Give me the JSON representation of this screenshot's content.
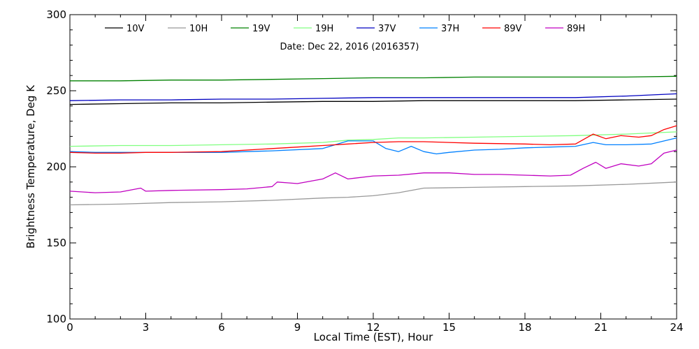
{
  "chart_data": {
    "type": "line",
    "title": "",
    "annotation": "Date: Dec 22, 2016 (2016357)",
    "xlabel": "Local Time (EST), Hour",
    "ylabel": "Brightness Temperature, Deg K",
    "xlim": [
      0,
      24
    ],
    "ylim": [
      100,
      300
    ],
    "xticks": [
      0,
      3,
      6,
      9,
      12,
      15,
      18,
      21,
      24
    ],
    "yticks": [
      100,
      150,
      200,
      250,
      300
    ],
    "grid": false,
    "legend_position": "top",
    "series": [
      {
        "name": "10V",
        "color": "#000000",
        "x": [
          0,
          2,
          4,
          6,
          8,
          10,
          12,
          14,
          16,
          18,
          20,
          22,
          24
        ],
        "y": [
          241,
          241.5,
          242,
          242,
          242.5,
          243,
          243,
          243.5,
          243.5,
          243.5,
          243.5,
          244,
          244.5
        ]
      },
      {
        "name": "10H",
        "color": "#999999",
        "x": [
          0,
          2,
          4,
          6,
          8,
          10,
          11,
          12,
          13,
          14,
          16,
          18,
          20,
          22,
          24
        ],
        "y": [
          175,
          175.5,
          176.5,
          177,
          178,
          179.5,
          180,
          181,
          183,
          186,
          186.5,
          187,
          187.5,
          188.5,
          190
        ]
      },
      {
        "name": "19V",
        "color": "#008000",
        "x": [
          0,
          2,
          4,
          6,
          8,
          10,
          12,
          14,
          16,
          18,
          20,
          22,
          24
        ],
        "y": [
          256.5,
          256.5,
          257,
          257,
          257.5,
          258,
          258.5,
          258.5,
          259,
          259,
          259,
          259,
          259.5
        ]
      },
      {
        "name": "19H",
        "color": "#80ff80",
        "x": [
          0,
          2,
          4,
          6,
          8,
          10,
          11,
          12,
          13,
          14,
          16,
          18,
          20,
          22,
          24
        ],
        "y": [
          213.5,
          214,
          214,
          214.5,
          215,
          216,
          217.5,
          218,
          219,
          219,
          219.5,
          220,
          220.5,
          221.5,
          223
        ]
      },
      {
        "name": "37V",
        "color": "#0000c0",
        "x": [
          0,
          2,
          4,
          6,
          8,
          10,
          12,
          14,
          16,
          18,
          20,
          22,
          24
        ],
        "y": [
          243.5,
          244,
          244,
          244.5,
          244.5,
          245,
          245.5,
          245.5,
          245.5,
          245.5,
          245.5,
          246.5,
          248
        ]
      },
      {
        "name": "37H",
        "color": "#0080ff",
        "x": [
          0,
          1,
          2,
          3,
          4,
          6,
          8,
          10,
          11,
          12,
          12.5,
          13,
          13.5,
          14,
          14.5,
          15,
          16,
          17,
          18,
          19,
          20,
          20.7,
          21.2,
          22,
          23,
          24
        ],
        "y": [
          210,
          209.5,
          209.5,
          209.5,
          209.5,
          209.5,
          210.5,
          212,
          217,
          217,
          212,
          210,
          213.5,
          210,
          208.5,
          209.5,
          211,
          211.5,
          212.5,
          213,
          213.5,
          216,
          214.5,
          214.5,
          215,
          219
        ]
      },
      {
        "name": "89V",
        "color": "#ff0000",
        "x": [
          0,
          1,
          2,
          3,
          4,
          6,
          8,
          9,
          10,
          11,
          12,
          13,
          14,
          15,
          16,
          18,
          19,
          20,
          20.7,
          21.2,
          21.8,
          22.5,
          23,
          23.5,
          24
        ],
        "y": [
          209.5,
          209,
          209,
          209.5,
          209.5,
          210,
          212,
          213,
          214,
          215,
          216,
          216.5,
          216.5,
          216,
          215.5,
          215,
          214.5,
          215,
          221.5,
          218.5,
          220.5,
          219.5,
          220.5,
          224.5,
          227
        ]
      },
      {
        "name": "89H",
        "color": "#c000c0",
        "x": [
          0,
          1,
          2,
          2.8,
          3,
          4,
          6,
          7,
          8,
          8.2,
          8.6,
          9,
          10,
          10.5,
          11,
          12,
          13,
          14,
          15,
          16,
          17,
          18,
          19,
          19.8,
          20.3,
          20.8,
          21.2,
          21.8,
          22.5,
          23,
          23.5,
          24
        ],
        "y": [
          184,
          183,
          183.5,
          186,
          184,
          184.5,
          185,
          185.5,
          187,
          190,
          189.5,
          189,
          192,
          196,
          192,
          194,
          194.5,
          196,
          196,
          195,
          195,
          194.5,
          194,
          194.5,
          199,
          203,
          199,
          202,
          200.5,
          202,
          209,
          211
        ]
      }
    ]
  }
}
